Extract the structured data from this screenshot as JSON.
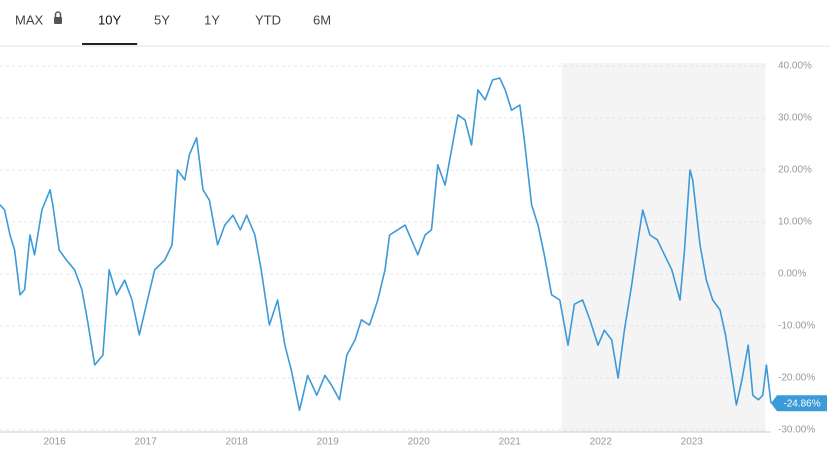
{
  "tabs": [
    "MAX",
    "10Y",
    "5Y",
    "1Y",
    "YTD",
    "6M"
  ],
  "selected_tab": 1,
  "chart_data": {
    "type": "line",
    "x": [
      2015.4,
      2015.45,
      2015.51,
      2015.56,
      2015.62,
      2015.67,
      2015.73,
      2015.78,
      2015.86,
      2015.95,
      2015.98,
      2016.05,
      2016.13,
      2016.22,
      2016.3,
      2016.36,
      2016.44,
      2016.53,
      2016.6,
      2016.68,
      2016.77,
      2016.85,
      2016.93,
      2017.02,
      2017.1,
      2017.21,
      2017.29,
      2017.35,
      2017.43,
      2017.48,
      2017.56,
      2017.63,
      2017.7,
      2017.79,
      2017.87,
      2017.96,
      2018.04,
      2018.11,
      2018.2,
      2018.27,
      2018.36,
      2018.45,
      2018.53,
      2018.6,
      2018.69,
      2018.78,
      2018.88,
      2018.97,
      2019.04,
      2019.13,
      2019.21,
      2019.3,
      2019.37,
      2019.46,
      2019.55,
      2019.63,
      2019.68,
      2019.77,
      2019.85,
      2019.92,
      2019.99,
      2020.07,
      2020.14,
      2020.21,
      2020.29,
      2020.36,
      2020.43,
      2020.51,
      2020.58,
      2020.65,
      2020.73,
      2020.81,
      2020.89,
      2020.95,
      2021.02,
      2021.11,
      2021.16,
      2021.24,
      2021.31,
      2021.38,
      2021.46,
      2021.55,
      2021.64,
      2021.71,
      2021.8,
      2021.88,
      2021.97,
      2022.04,
      2022.12,
      2022.19,
      2022.26,
      2022.34,
      2022.41,
      2022.46,
      2022.54,
      2022.62,
      2022.7,
      2022.78,
      2022.87,
      2022.92,
      2022.98,
      2023.01,
      2023.09,
      2023.16,
      2023.23,
      2023.31,
      2023.37,
      2023.44,
      2023.49,
      2023.55,
      2023.62,
      2023.67,
      2023.73,
      2023.78,
      2023.82,
      2023.87
    ],
    "series": [
      {
        "color": "#3d9ad8",
        "values": [
          13.3,
          12.3,
          7.5,
          4.6,
          -4,
          -3,
          7.5,
          3.7,
          12.3,
          16.2,
          13.3,
          4.6,
          2.7,
          0.8,
          -3,
          -8.8,
          -17.5,
          -15.6,
          0.8,
          -4,
          -1.2,
          -5,
          -11.7,
          -5,
          0.8,
          2.7,
          5.6,
          20,
          18.1,
          22.9,
          26.2,
          16.2,
          14.2,
          5.6,
          9.4,
          11.3,
          8.5,
          11.3,
          7.5,
          0.8,
          -9.8,
          -5,
          -13.7,
          -18.5,
          -26.2,
          -19.5,
          -23.3,
          -19.5,
          -21.3,
          -24.2,
          -15.6,
          -12.7,
          -8.8,
          -9.8,
          -5,
          0.8,
          7.5,
          8.5,
          9.4,
          6.6,
          3.7,
          7.5,
          8.5,
          21,
          17.1,
          23.8,
          30.6,
          29.6,
          24.8,
          35.4,
          33.5,
          37.3,
          37.7,
          35.4,
          31.5,
          32.5,
          25.8,
          13.3,
          9.4,
          3.7,
          -4,
          -5,
          -13.7,
          -5.8,
          -5,
          -8.8,
          -13.7,
          -10.8,
          -12.7,
          -20,
          -10.8,
          -2.1,
          6.6,
          12.3,
          7.5,
          6.6,
          3.7,
          0.8,
          -5,
          4.6,
          20,
          18.1,
          5.6,
          -1.2,
          -5,
          -6.9,
          -11.7,
          -19.5,
          -25.2,
          -20.4,
          -13.7,
          -23.3,
          -24.2,
          -23.3,
          -17.5,
          -24.86
        ]
      }
    ],
    "xlim": [
      2015.4,
      2023.87
    ],
    "xticks": [
      2016,
      2017,
      2018,
      2019,
      2020,
      2021,
      2022,
      2023
    ],
    "ylim": [
      -30,
      40
    ],
    "yticks": [
      {
        "value": 40,
        "label": "40.00%"
      },
      {
        "value": 30,
        "label": "30.00%"
      },
      {
        "value": 20,
        "label": "20.00%"
      },
      {
        "value": 10,
        "label": "10.00%"
      },
      {
        "value": 0,
        "label": "0.00%"
      },
      {
        "value": -10,
        "label": "-10.00%"
      },
      {
        "value": -20,
        "label": "-20.00%"
      },
      {
        "value": -30,
        "label": "-30.00%"
      }
    ],
    "grid": true,
    "highlight": [
      2021.57,
      2023.81
    ],
    "annotation": {
      "value": -24.86,
      "label": "-24.86%"
    }
  }
}
